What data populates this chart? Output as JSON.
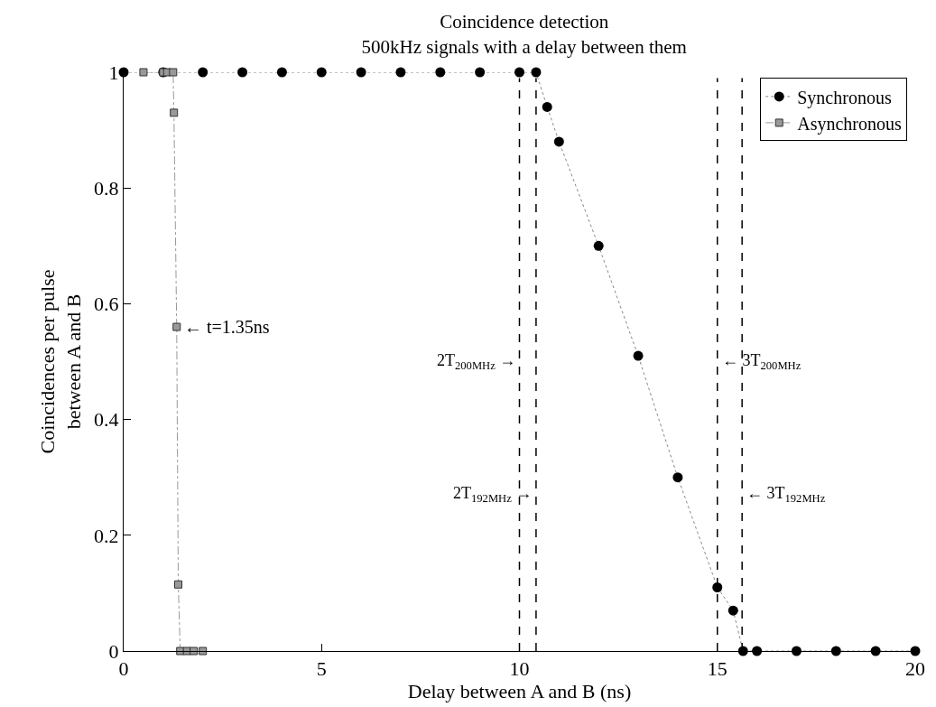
{
  "chart_data": {
    "type": "line",
    "title": "Coincidence detection",
    "subtitle": "500kHz signals with a delay between them",
    "xlabel": "Delay between A and B (ns)",
    "ylabel": "Coincidences per pulse\nbetween A and B",
    "series": [
      {
        "name": "Synchronous",
        "color": "#000000",
        "marker": "circle",
        "line_style": "dotted",
        "x": [
          0,
          1,
          2,
          3,
          4,
          5,
          6,
          7,
          8,
          9,
          10,
          10.42,
          10.7,
          11,
          12,
          13,
          14,
          15,
          15.4,
          15.65,
          16,
          17,
          18,
          19,
          20
        ],
        "values": [
          1,
          1,
          1,
          1,
          1,
          1,
          1,
          1,
          1,
          1,
          1,
          1,
          0.94,
          0.88,
          0.7,
          0.51,
          0.3,
          0.11,
          0.07,
          0,
          0,
          0,
          0,
          0,
          0
        ]
      },
      {
        "name": "Asynchronous",
        "color": "#999999",
        "marker": "square",
        "line_style": "dashed",
        "x": [
          0.5,
          1,
          1.1,
          1.25,
          1.27,
          1.34,
          1.38,
          1.43,
          1.6,
          1.77,
          2
        ],
        "values": [
          1,
          1,
          1,
          1,
          0.93,
          0.56,
          0.115,
          0,
          0,
          0,
          0
        ]
      }
    ],
    "ref_lines": [
      {
        "axis": "x",
        "value": 10,
        "label": "2T$_{200MHz}$ →",
        "line_style": "dashed",
        "color": "#000000"
      },
      {
        "axis": "x",
        "value": 10.42,
        "label": "2T$_{192MHz}$ →",
        "line_style": "dashed",
        "color": "#000000"
      },
      {
        "axis": "x",
        "value": 15,
        "label": "← 3T$_{200MHz}$",
        "line_style": "dashed",
        "color": "#000000"
      },
      {
        "axis": "x",
        "value": 15.625,
        "label": "← 3T$_{192MHz}$",
        "line_style": "dashed",
        "color": "#000000"
      }
    ],
    "annotations": [
      {
        "text": "← t=1.35ns",
        "x": 1.34,
        "y": 0.56
      }
    ],
    "xlim": [
      0,
      20
    ],
    "ylim": [
      0,
      1
    ],
    "xticks": [
      0,
      5,
      10,
      15,
      20
    ],
    "yticks": [
      0,
      0.2,
      0.4,
      0.6,
      0.8,
      1
    ],
    "grid": false,
    "legend": "top right"
  }
}
